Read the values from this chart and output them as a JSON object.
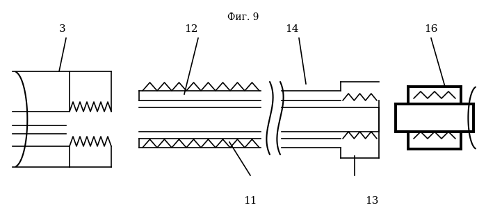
{
  "title": "Фиг. 9",
  "background_color": "#ffffff",
  "lw_thin": 1.2,
  "lw_thick": 2.8
}
